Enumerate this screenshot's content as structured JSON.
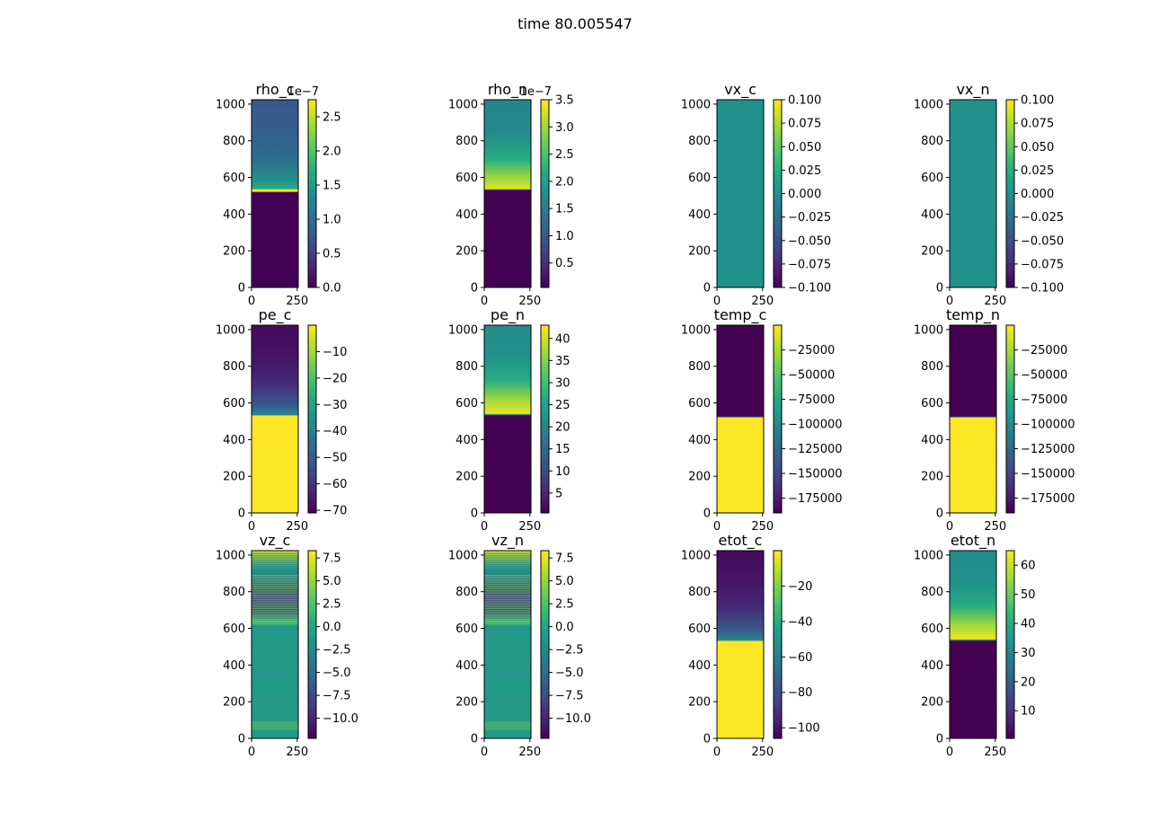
{
  "figure": {
    "suptitle": "time 80.005547"
  },
  "palette": {
    "viridis": [
      "#440154",
      "#482475",
      "#414487",
      "#355f8d",
      "#2a788e",
      "#21918c",
      "#22a884",
      "#44bf70",
      "#7ad151",
      "#bddf26",
      "#fde725"
    ]
  },
  "chart_data": [
    {
      "type": "heatmap",
      "title": "rho_c",
      "xticks": [
        "0",
        "250"
      ],
      "yticks": [
        "0",
        "200",
        "400",
        "600",
        "800",
        "1000"
      ],
      "xlim": [
        0,
        256
      ],
      "ylim": [
        0,
        1024
      ],
      "colorbar": {
        "vmin": 0.0,
        "vmax": 2.75,
        "ticks": [
          0.0,
          0.5,
          1.0,
          1.5,
          2.0,
          2.5
        ],
        "tick_labels": [
          "0.0",
          "0.5",
          "1.0",
          "1.5",
          "2.0",
          "2.5"
        ],
        "offset": "1e−7"
      },
      "profile": [
        [
          0,
          0.0
        ],
        [
          520,
          0.0
        ],
        [
          522,
          1.0
        ],
        [
          532,
          1.0
        ],
        [
          538,
          0.62
        ],
        [
          580,
          0.5
        ],
        [
          700,
          0.36
        ],
        [
          850,
          0.3
        ],
        [
          1024,
          0.27
        ]
      ]
    },
    {
      "type": "heatmap",
      "title": "rho_n",
      "xticks": [
        "0",
        "250"
      ],
      "yticks": [
        "0",
        "200",
        "400",
        "600",
        "800",
        "1000"
      ],
      "xlim": [
        0,
        256
      ],
      "ylim": [
        0,
        1024
      ],
      "colorbar": {
        "vmin": 0.05,
        "vmax": 3.5,
        "ticks": [
          0.5,
          1.0,
          1.5,
          2.0,
          2.5,
          3.0,
          3.5
        ],
        "tick_labels": [
          "0.5",
          "1.0",
          "1.5",
          "2.0",
          "2.5",
          "3.0",
          "3.5"
        ],
        "offset": "1e−7"
      },
      "profile": [
        [
          0,
          0.0
        ],
        [
          528,
          0.0
        ],
        [
          533,
          0.3
        ],
        [
          538,
          0.95
        ],
        [
          600,
          0.85
        ],
        [
          700,
          0.62
        ],
        [
          850,
          0.47
        ],
        [
          1024,
          0.45
        ]
      ]
    },
    {
      "type": "heatmap",
      "title": "vx_c",
      "xticks": [
        "0",
        "250"
      ],
      "yticks": [
        "0",
        "200",
        "400",
        "600",
        "800",
        "1000"
      ],
      "xlim": [
        0,
        256
      ],
      "ylim": [
        0,
        1024
      ],
      "colorbar": {
        "vmin": -0.1,
        "vmax": 0.1,
        "ticks": [
          -0.1,
          -0.075,
          -0.05,
          -0.025,
          0.0,
          0.025,
          0.05,
          0.075,
          0.1
        ],
        "tick_labels": [
          "−0.100",
          "−0.075",
          "−0.050",
          "−0.025",
          "0.000",
          "0.025",
          "0.050",
          "0.075",
          "0.100"
        ]
      },
      "profile": [
        [
          0,
          0.5
        ],
        [
          1024,
          0.5
        ]
      ]
    },
    {
      "type": "heatmap",
      "title": "vx_n",
      "xticks": [
        "0",
        "250"
      ],
      "yticks": [
        "0",
        "200",
        "400",
        "600",
        "800",
        "1000"
      ],
      "xlim": [
        0,
        256
      ],
      "ylim": [
        0,
        1024
      ],
      "colorbar": {
        "vmin": -0.1,
        "vmax": 0.1,
        "ticks": [
          -0.1,
          -0.075,
          -0.05,
          -0.025,
          0.0,
          0.025,
          0.05,
          0.075,
          0.1
        ],
        "tick_labels": [
          "−0.100",
          "−0.075",
          "−0.050",
          "−0.025",
          "0.000",
          "0.025",
          "0.050",
          "0.075",
          "0.100"
        ]
      },
      "profile": [
        [
          0,
          0.5
        ],
        [
          1024,
          0.5
        ]
      ]
    },
    {
      "type": "heatmap",
      "title": "pe_c",
      "xticks": [
        "0",
        "250"
      ],
      "yticks": [
        "0",
        "200",
        "400",
        "600",
        "800",
        "1000"
      ],
      "xlim": [
        0,
        256
      ],
      "ylim": [
        0,
        1024
      ],
      "colorbar": {
        "vmin": -71,
        "vmax": 0,
        "ticks": [
          -70,
          -60,
          -50,
          -40,
          -30,
          -20,
          -10
        ],
        "tick_labels": [
          "−70",
          "−60",
          "−50",
          "−40",
          "−30",
          "−20",
          "−10"
        ]
      },
      "profile": [
        [
          0,
          1.0
        ],
        [
          528,
          1.0
        ],
        [
          536,
          0.45
        ],
        [
          580,
          0.3
        ],
        [
          700,
          0.13
        ],
        [
          850,
          0.05
        ],
        [
          1024,
          0.03
        ]
      ]
    },
    {
      "type": "heatmap",
      "title": "pe_n",
      "xticks": [
        "0",
        "250"
      ],
      "yticks": [
        "0",
        "200",
        "400",
        "600",
        "800",
        "1000"
      ],
      "xlim": [
        0,
        256
      ],
      "ylim": [
        0,
        1024
      ],
      "colorbar": {
        "vmin": 0.5,
        "vmax": 43,
        "ticks": [
          5,
          10,
          15,
          20,
          25,
          30,
          35,
          40
        ],
        "tick_labels": [
          "5",
          "10",
          "15",
          "20",
          "25",
          "30",
          "35",
          "40"
        ]
      },
      "profile": [
        [
          0,
          0.0
        ],
        [
          530,
          0.0
        ],
        [
          536,
          0.45
        ],
        [
          542,
          0.97
        ],
        [
          620,
          0.85
        ],
        [
          720,
          0.62
        ],
        [
          850,
          0.5
        ],
        [
          1024,
          0.48
        ]
      ]
    },
    {
      "type": "heatmap",
      "title": "temp_c",
      "xticks": [
        "0",
        "250"
      ],
      "yticks": [
        "0",
        "200",
        "400",
        "600",
        "800",
        "1000"
      ],
      "xlim": [
        0,
        256
      ],
      "ylim": [
        0,
        1024
      ],
      "colorbar": {
        "vmin": -190000,
        "vmax": 0,
        "ticks": [
          -175000,
          -150000,
          -125000,
          -100000,
          -75000,
          -50000,
          -25000
        ],
        "tick_labels": [
          "−175000",
          "−150000",
          "−125000",
          "−100000",
          "−75000",
          "−50000",
          "−25000"
        ]
      },
      "profile": [
        [
          0,
          1.0
        ],
        [
          518,
          1.0
        ],
        [
          523,
          0.45
        ],
        [
          528,
          0.0
        ],
        [
          1024,
          0.0
        ]
      ]
    },
    {
      "type": "heatmap",
      "title": "temp_n",
      "xticks": [
        "0",
        "250"
      ],
      "yticks": [
        "0",
        "200",
        "400",
        "600",
        "800",
        "1000"
      ],
      "xlim": [
        0,
        256
      ],
      "ylim": [
        0,
        1024
      ],
      "colorbar": {
        "vmin": -190000,
        "vmax": 0,
        "ticks": [
          -175000,
          -150000,
          -125000,
          -100000,
          -75000,
          -50000,
          -25000
        ],
        "tick_labels": [
          "−175000",
          "−150000",
          "−125000",
          "−100000",
          "−75000",
          "−50000",
          "−25000"
        ]
      },
      "profile": [
        [
          0,
          1.0
        ],
        [
          518,
          1.0
        ],
        [
          523,
          0.45
        ],
        [
          528,
          0.0
        ],
        [
          1024,
          0.0
        ]
      ]
    },
    {
      "type": "heatmap",
      "title": "vz_c",
      "xticks": [
        "0",
        "250"
      ],
      "yticks": [
        "0",
        "200",
        "400",
        "600",
        "800",
        "1000"
      ],
      "xlim": [
        0,
        256
      ],
      "ylim": [
        0,
        1024
      ],
      "colorbar": {
        "vmin": -12.2,
        "vmax": 8.3,
        "ticks": [
          -10,
          -7.5,
          -5,
          -2.5,
          0,
          2.5,
          5,
          7.5
        ],
        "tick_labels": [
          "−10.0",
          "−7.5",
          "−5.0",
          "−2.5",
          "0.0",
          "2.5",
          "5.0",
          "7.5"
        ]
      },
      "profile": [
        [
          0,
          0.55
        ],
        [
          620,
          0.55
        ],
        [
          635,
          0.7
        ],
        [
          680,
          0.28
        ],
        [
          760,
          0.18
        ],
        [
          860,
          0.35
        ],
        [
          930,
          0.6
        ],
        [
          1024,
          0.95
        ]
      ],
      "striped": true
    },
    {
      "type": "heatmap",
      "title": "vz_n",
      "xticks": [
        "0",
        "250"
      ],
      "yticks": [
        "0",
        "200",
        "400",
        "600",
        "800",
        "1000"
      ],
      "xlim": [
        0,
        256
      ],
      "ylim": [
        0,
        1024
      ],
      "colorbar": {
        "vmin": -12.2,
        "vmax": 8.3,
        "ticks": [
          -10,
          -7.5,
          -5,
          -2.5,
          0,
          2.5,
          5,
          7.5
        ],
        "tick_labels": [
          "−10.0",
          "−7.5",
          "−5.0",
          "−2.5",
          "0.0",
          "2.5",
          "5.0",
          "7.5"
        ]
      },
      "profile": [
        [
          0,
          0.55
        ],
        [
          620,
          0.55
        ],
        [
          635,
          0.7
        ],
        [
          680,
          0.28
        ],
        [
          760,
          0.18
        ],
        [
          860,
          0.35
        ],
        [
          930,
          0.6
        ],
        [
          1024,
          0.95
        ]
      ],
      "striped": true
    },
    {
      "type": "heatmap",
      "title": "etot_c",
      "xticks": [
        "0",
        "250"
      ],
      "yticks": [
        "0",
        "200",
        "400",
        "600",
        "800",
        "1000"
      ],
      "xlim": [
        0,
        256
      ],
      "ylim": [
        0,
        1024
      ],
      "colorbar": {
        "vmin": -106,
        "vmax": 0,
        "ticks": [
          -100,
          -80,
          -60,
          -40,
          -20
        ],
        "tick_labels": [
          "−100",
          "−80",
          "−60",
          "−40",
          "−20"
        ]
      },
      "profile": [
        [
          0,
          1.0
        ],
        [
          528,
          1.0
        ],
        [
          536,
          0.45
        ],
        [
          580,
          0.3
        ],
        [
          700,
          0.13
        ],
        [
          850,
          0.05
        ],
        [
          1024,
          0.03
        ]
      ]
    },
    {
      "type": "heatmap",
      "title": "etot_n",
      "xticks": [
        "0",
        "250"
      ],
      "yticks": [
        "0",
        "200",
        "400",
        "600",
        "800",
        "1000"
      ],
      "xlim": [
        0,
        256
      ],
      "ylim": [
        0,
        1024
      ],
      "colorbar": {
        "vmin": 0.5,
        "vmax": 65,
        "ticks": [
          10,
          20,
          30,
          40,
          50,
          60
        ],
        "tick_labels": [
          "10",
          "20",
          "30",
          "40",
          "50",
          "60"
        ]
      },
      "profile": [
        [
          0,
          0.0
        ],
        [
          530,
          0.0
        ],
        [
          536,
          0.45
        ],
        [
          542,
          0.97
        ],
        [
          620,
          0.85
        ],
        [
          720,
          0.62
        ],
        [
          850,
          0.5
        ],
        [
          1024,
          0.48
        ]
      ]
    }
  ]
}
